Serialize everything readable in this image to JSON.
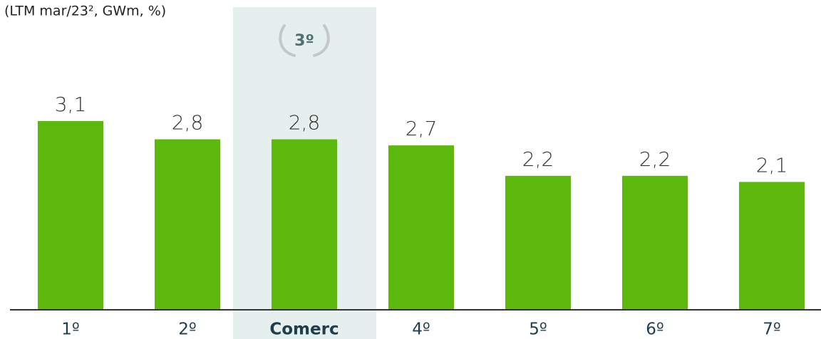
{
  "chart_data": {
    "type": "bar",
    "title": "(LTM mar/23², GWm, %)",
    "categories": [
      "1º",
      "2º",
      "Comerc",
      "4º",
      "5º",
      "6º",
      "7º"
    ],
    "values": [
      3.1,
      2.8,
      2.8,
      2.7,
      2.2,
      2.2,
      2.1
    ],
    "value_labels": [
      "3,1",
      "2,8",
      "2,8",
      "2,7",
      "2,2",
      "2,2",
      "2,1"
    ],
    "color": "#5cb80c",
    "highlight": 2,
    "badge": "3º"
  }
}
